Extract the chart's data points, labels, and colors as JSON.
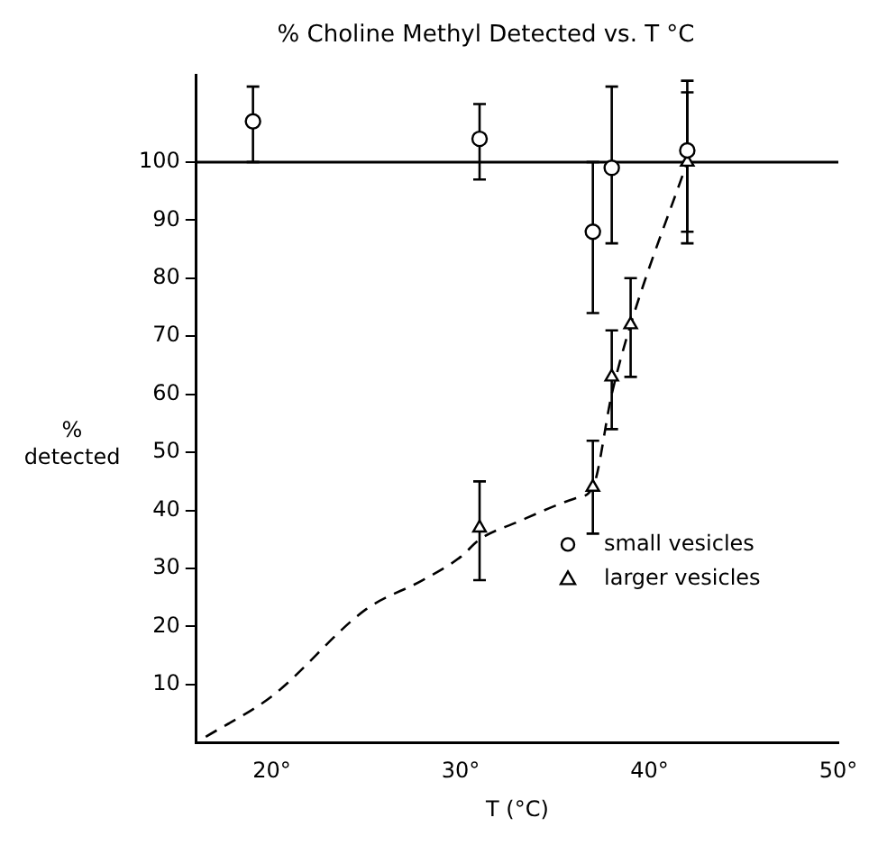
{
  "chart_data": {
    "type": "scatter",
    "title": "% Choline Methyl Detected vs. T °C",
    "xlabel": "T (°C)",
    "ylabel": "% detected",
    "xlim": [
      16,
      50
    ],
    "xticks": [
      {
        "value": 20,
        "label": "20°"
      },
      {
        "value": 30,
        "label": "30°"
      },
      {
        "value": 40,
        "label": "40°"
      },
      {
        "value": 50,
        "label": "50°"
      }
    ],
    "ylim": [
      0,
      115
    ],
    "yticks": [
      10,
      20,
      30,
      40,
      50,
      60,
      70,
      80,
      90,
      100
    ],
    "grid": false,
    "legend": "bottom right",
    "ref_lines": [
      {
        "axis": "y",
        "value": 100,
        "color": "#000000"
      }
    ],
    "series": [
      {
        "name": "small vesicles",
        "marker": "circle",
        "color": "#000000",
        "x": [
          19,
          31,
          37,
          38,
          42
        ],
        "values": [
          107,
          104,
          88,
          99,
          102
        ],
        "errors": [
          [
            100,
            113
          ],
          [
            97,
            110
          ],
          [
            74,
            100
          ],
          [
            86,
            113
          ],
          [
            88,
            114
          ]
        ]
      },
      {
        "name": "larger vesicles",
        "marker": "triangle",
        "color": "#000000",
        "x": [
          31,
          37,
          38,
          39,
          42
        ],
        "values": [
          37,
          44,
          63,
          72,
          100
        ],
        "errors": [
          [
            28,
            45
          ],
          [
            36,
            52
          ],
          [
            54,
            71
          ],
          [
            63,
            80
          ],
          [
            86,
            112
          ]
        ]
      },
      {
        "type": "line",
        "marker": "none",
        "line_style": "dashed",
        "color": "#000000",
        "x": [
          16.5,
          20,
          25,
          28,
          30,
          31,
          33,
          36,
          37,
          38,
          39,
          42
        ],
        "values": [
          1,
          8,
          23,
          28,
          32,
          35,
          38,
          42,
          44,
          60,
          72,
          100
        ]
      }
    ]
  }
}
